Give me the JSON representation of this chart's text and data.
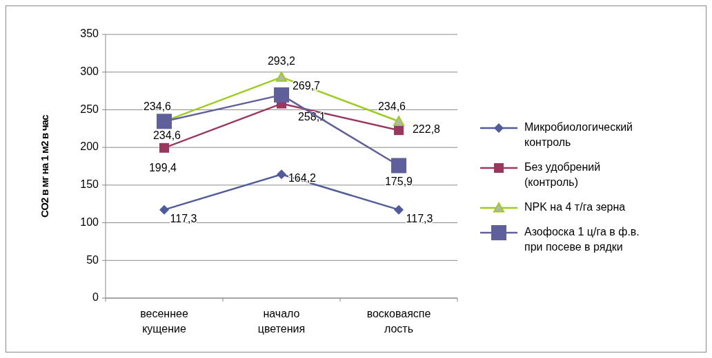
{
  "chart_data": {
    "type": "line",
    "ylabel": "CO2 в мг на 1 м2 в час",
    "categories": [
      "весеннее кущение",
      "начало цветения",
      "восковаяспелость"
    ],
    "ylim": [
      0,
      350
    ],
    "yticks": [
      0,
      50,
      100,
      150,
      200,
      250,
      300,
      350
    ],
    "grid": "y",
    "legend": "right",
    "series": [
      {
        "name": "Микробиологический контроль",
        "color": "#4f5b9b",
        "marker": "diamond",
        "values": [
          117.3,
          164.2,
          117.3
        ],
        "value_labels": [
          "117,3",
          "164,2",
          "117,3"
        ]
      },
      {
        "name": " Без удобрений (контроль)",
        "color": "#9b365f",
        "marker": "square",
        "values": [
          199.4,
          258.1,
          222.8
        ],
        "value_labels": [
          "199,4",
          "258,1",
          "222,8"
        ]
      },
      {
        "name": "NPK на 4 т/га зерна",
        "color": "#9ccc1c",
        "marker": "triangle",
        "values": [
          234.6,
          293.2,
          234.6
        ],
        "value_labels": [
          "234,6",
          "293,2",
          "234,6"
        ]
      },
      {
        "name": "Азофоска  1 ц/га в ф.в. при посеве в рядки",
        "color": "#5f5f9b",
        "marker": "square",
        "values": [
          234.6,
          269.7,
          175.9
        ],
        "value_labels": [
          "234,6",
          "269,7",
          "175,9"
        ]
      }
    ]
  }
}
